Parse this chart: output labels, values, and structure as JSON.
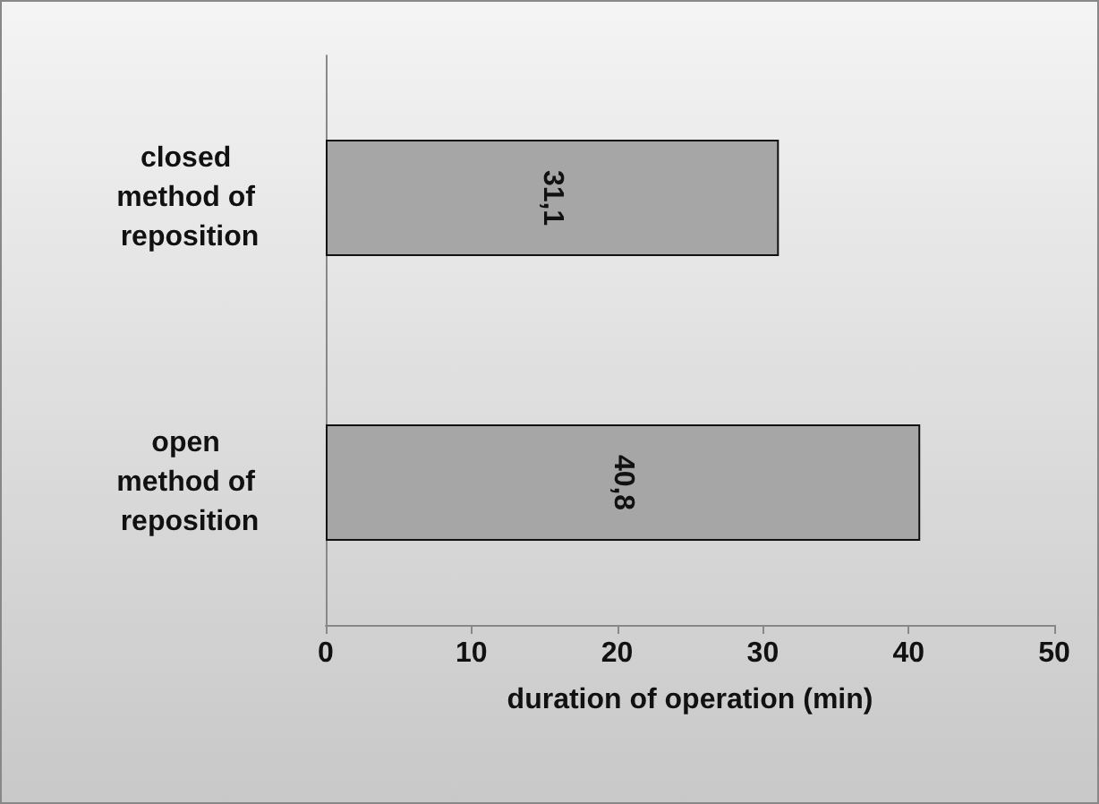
{
  "chart_data": {
    "type": "bar",
    "orientation": "horizontal",
    "xlabel": "duration of operation (min)",
    "categories": [
      "closed method of reposition",
      "open method of reposition"
    ],
    "values": [
      31.1,
      40.8
    ],
    "value_labels": [
      "31,1",
      "40,8"
    ],
    "color": "#a6a6a6",
    "xlim": [
      0,
      50
    ],
    "xticks": [
      0,
      10,
      20,
      30,
      40,
      50
    ],
    "grid": false
  }
}
